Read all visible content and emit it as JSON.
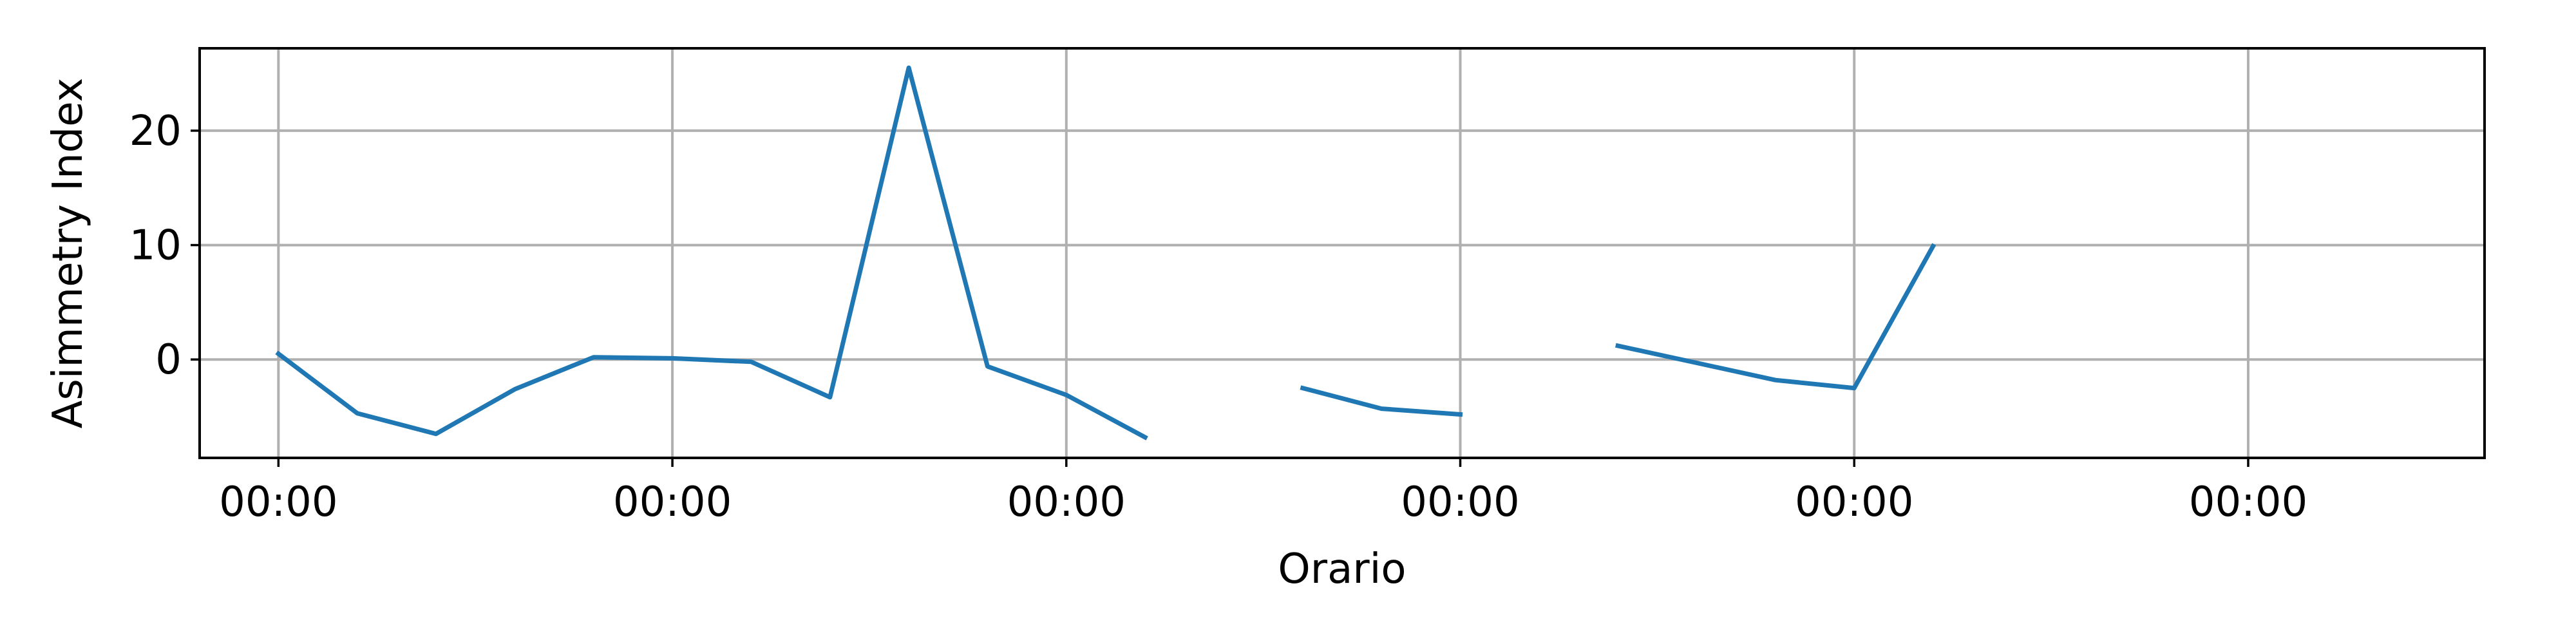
{
  "chart_data": {
    "type": "line",
    "title": "",
    "xlabel": "Orario",
    "ylabel": "Asimmetry Index",
    "x_ticks": [
      "00:00",
      "00:00",
      "00:00",
      "00:00",
      "00:00",
      "00:00",
      "00:00"
    ],
    "y_ticks": [
      0,
      10,
      20
    ],
    "xlim": [
      -0.1,
      2.8
    ],
    "ylim": [
      -8.6,
      27.2
    ],
    "grid": true,
    "line_color": "#1f77b4",
    "series": [
      {
        "segments": [
          [
            [
              0.0,
              0.5
            ],
            [
              0.1,
              -4.7
            ],
            [
              0.2,
              -6.5
            ],
            [
              0.3,
              -2.6
            ],
            [
              0.4,
              0.2
            ],
            [
              0.5,
              0.1
            ],
            [
              0.6,
              -0.2
            ],
            [
              0.7,
              -3.3
            ],
            [
              0.8,
              25.5
            ],
            [
              0.9,
              -0.6
            ],
            [
              1.0,
              -3.1
            ],
            [
              1.1,
              -6.8
            ]
          ],
          [
            [
              1.3,
              -2.5
            ],
            [
              1.4,
              -4.3
            ],
            [
              1.5,
              -4.8
            ]
          ],
          [
            [
              1.7,
              1.2
            ],
            [
              1.8,
              -0.3
            ],
            [
              1.9,
              -1.8
            ],
            [
              2.0,
              -2.5
            ],
            [
              2.0,
              -2.5
            ],
            [
              2.1,
              9.9
            ]
          ]
        ]
      }
    ]
  }
}
